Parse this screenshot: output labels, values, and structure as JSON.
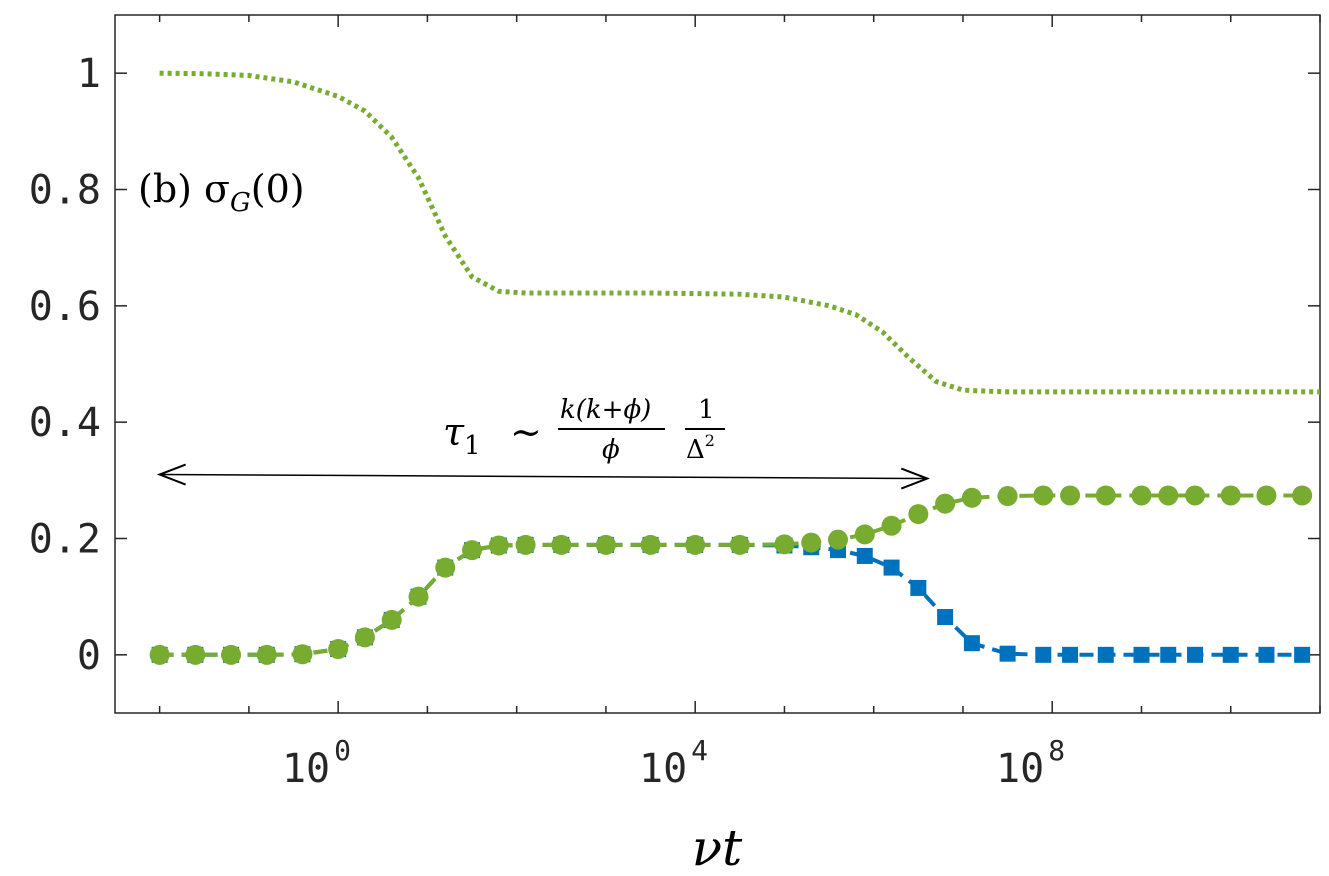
{
  "chart_data": {
    "type": "line",
    "title": "",
    "xlabel": "νt",
    "ylabel": "",
    "xscale": "log",
    "xlim_log10": [
      -2.5,
      11
    ],
    "ylim": [
      -0.1,
      1.1
    ],
    "x_ticks": [
      {
        "base": "10",
        "exp": "0",
        "log10": 0
      },
      {
        "base": "10",
        "exp": "4",
        "log10": 4
      },
      {
        "base": "10",
        "exp": "8",
        "log10": 8
      }
    ],
    "y_ticks": [
      {
        "label": "0",
        "value": 0
      },
      {
        "label": "0.2",
        "value": 0.2
      },
      {
        "label": "0.4",
        "value": 0.4
      },
      {
        "label": "0.6",
        "value": 0.6
      },
      {
        "label": "0.8",
        "value": 0.8
      },
      {
        "label": "1",
        "value": 1
      }
    ],
    "annotations": {
      "panel_label": "(b) σ",
      "panel_label_sub": "G",
      "panel_label_tail": "(0)",
      "tau_lhs": "τ",
      "tau_lhs_sub": "1",
      "tau_sim": "∼",
      "tau_num": "k(k+ϕ)",
      "tau_den": "ϕ",
      "tau_num2": "1",
      "tau_den2": "Δ",
      "tau_den2_sup": "2",
      "arrow_from_log10": -2.0,
      "arrow_to_log10": 6.6,
      "arrow_y": 0.31
    },
    "series": [
      {
        "name": "σ_G(0) dotted",
        "color": "#77AC30",
        "style": "dotted",
        "x_log10": [
          -2.0,
          -1.5,
          -1.0,
          -0.5,
          0.0,
          0.3,
          0.6,
          0.9,
          1.2,
          1.5,
          1.8,
          2.1,
          2.5,
          3.0,
          3.5,
          4.0,
          4.5,
          5.0,
          5.5,
          5.8,
          6.1,
          6.4,
          6.7,
          7.0,
          7.5,
          8.0,
          9.0,
          10.0,
          11.0
        ],
        "y": [
          1.0,
          0.999,
          0.996,
          0.985,
          0.96,
          0.935,
          0.89,
          0.82,
          0.72,
          0.65,
          0.625,
          0.622,
          0.622,
          0.622,
          0.622,
          0.621,
          0.62,
          0.615,
          0.6,
          0.585,
          0.555,
          0.51,
          0.47,
          0.455,
          0.452,
          0.452,
          0.452,
          0.452,
          0.452
        ]
      },
      {
        "name": "blue squares",
        "color": "#0072BD",
        "style": "dashed-square",
        "x_log10": [
          -2.0,
          -1.6,
          -1.2,
          -0.8,
          -0.4,
          0.0,
          0.3,
          0.6,
          0.9,
          1.2,
          1.5,
          1.8,
          2.1,
          2.5,
          3.0,
          3.5,
          4.0,
          4.5,
          5.0,
          5.3,
          5.6,
          5.9,
          6.2,
          6.5,
          6.8,
          7.1,
          7.5,
          7.9,
          8.2,
          8.6,
          9.0,
          9.3,
          9.6,
          10.0,
          10.4,
          10.8
        ],
        "y": [
          0.0,
          0.0,
          0.0,
          0.0,
          0.001,
          0.01,
          0.03,
          0.06,
          0.1,
          0.15,
          0.18,
          0.188,
          0.189,
          0.189,
          0.189,
          0.189,
          0.189,
          0.189,
          0.188,
          0.185,
          0.18,
          0.17,
          0.15,
          0.115,
          0.065,
          0.02,
          0.002,
          0.0,
          0.0,
          0.0,
          0.0,
          0.0,
          0.0,
          0.0,
          0.0,
          0.0
        ]
      },
      {
        "name": "green circles",
        "color": "#77AC30",
        "style": "dashed-circle",
        "x_log10": [
          -2.0,
          -1.6,
          -1.2,
          -0.8,
          -0.4,
          0.0,
          0.3,
          0.6,
          0.9,
          1.2,
          1.5,
          1.8,
          2.1,
          2.5,
          3.0,
          3.5,
          4.0,
          4.5,
          5.0,
          5.3,
          5.6,
          5.9,
          6.2,
          6.5,
          6.8,
          7.1,
          7.5,
          7.9,
          8.2,
          8.6,
          9.0,
          9.3,
          9.6,
          10.0,
          10.4,
          10.8
        ],
        "y": [
          0.0,
          0.0,
          0.0,
          0.0,
          0.001,
          0.01,
          0.03,
          0.06,
          0.1,
          0.15,
          0.18,
          0.188,
          0.189,
          0.189,
          0.189,
          0.189,
          0.189,
          0.189,
          0.19,
          0.193,
          0.198,
          0.207,
          0.222,
          0.242,
          0.26,
          0.27,
          0.273,
          0.274,
          0.274,
          0.274,
          0.274,
          0.274,
          0.274,
          0.274,
          0.274,
          0.274
        ]
      }
    ]
  }
}
